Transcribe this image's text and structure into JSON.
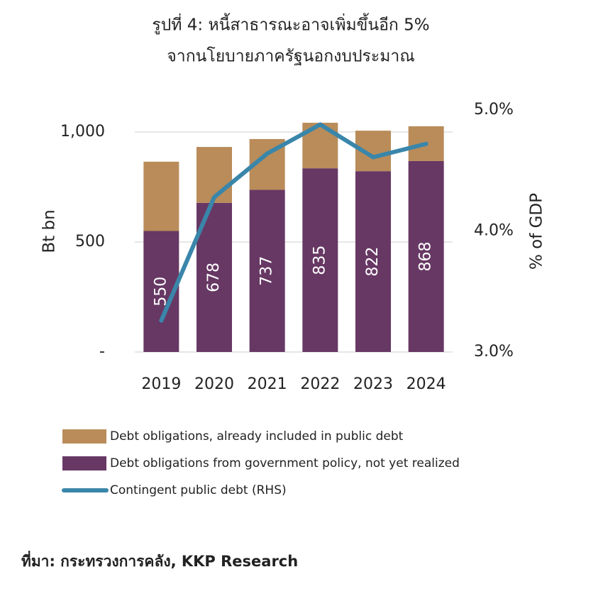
{
  "chart_data": {
    "type": "bar",
    "stacked": true,
    "title": [
      "รูปที่ 4: หนี้สาธารณะอาจเพิ่มขึ้นอีก 5%",
      "จากนโยบายภาครัฐนอกงบประมาณ"
    ],
    "y_label": "Bt bn",
    "y2_label": "% of GDP",
    "categories": [
      "2019",
      "2020",
      "2021",
      "2022",
      "2023",
      "2024"
    ],
    "series": [
      {
        "name": "Debt obligations from government policy, not yet realized",
        "type": "bar",
        "color": "#673864",
        "show_labels": true,
        "values": [
          550,
          678,
          737,
          835,
          822,
          868
        ]
      },
      {
        "name": "Debt obligations, already included in public debt",
        "type": "bar",
        "color": "#b98c5a",
        "values": [
          315,
          254,
          231,
          207,
          184,
          158
        ]
      },
      {
        "name": "Contingent public debt (RHS)",
        "type": "line",
        "axis": "y2",
        "color": "#3a86aa",
        "values": [
          3.26,
          4.28,
          4.64,
          4.88,
          4.61,
          4.72
        ]
      }
    ],
    "ylim": [
      0,
      1100
    ],
    "yticks": [
      {
        "value": 0,
        "label": "-"
      },
      500,
      {
        "value": 1000,
        "label": "1,000"
      }
    ],
    "y2lim": [
      3,
      5
    ],
    "y2ticks": [
      {
        "value": 3,
        "label": "3.0%"
      },
      {
        "value": 4,
        "label": "4.0%"
      },
      {
        "value": 5,
        "label": "5.0%"
      }
    ],
    "grid": true,
    "legend": "bottom",
    "source": "ที่มา: กระทรวงการคลัง, KKP Research"
  }
}
